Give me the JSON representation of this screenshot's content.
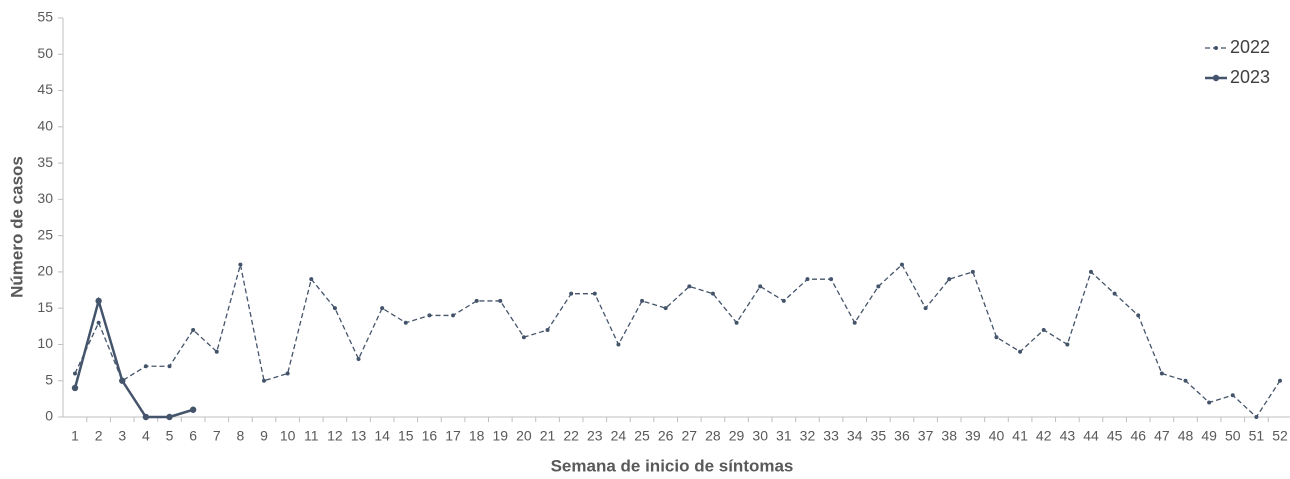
{
  "chart_data": {
    "type": "line",
    "x_label": "Semana de inicio de síntomas",
    "y_label": "Número de casos",
    "categories": [
      1,
      2,
      3,
      4,
      5,
      6,
      7,
      8,
      9,
      10,
      11,
      12,
      13,
      14,
      15,
      16,
      17,
      18,
      19,
      20,
      21,
      22,
      23,
      24,
      25,
      26,
      27,
      28,
      29,
      30,
      31,
      32,
      33,
      34,
      35,
      36,
      37,
      38,
      39,
      40,
      41,
      42,
      43,
      44,
      45,
      46,
      47,
      48,
      49,
      50,
      51,
      52
    ],
    "series": [
      {
        "name": "2022",
        "color": "#44546a",
        "dashed": true,
        "values": [
          6,
          13,
          5,
          7,
          7,
          12,
          9,
          21,
          5,
          6,
          19,
          15,
          8,
          15,
          13,
          14,
          14,
          16,
          16,
          11,
          12,
          17,
          17,
          10,
          16,
          15,
          18,
          17,
          13,
          18,
          16,
          19,
          19,
          13,
          18,
          21,
          15,
          19,
          20,
          11,
          9,
          12,
          10,
          20,
          17,
          14,
          6,
          5,
          2,
          3,
          0,
          5
        ]
      },
      {
        "name": "2023",
        "color": "#44546a",
        "dashed": false,
        "values": [
          4,
          16,
          5,
          0,
          0,
          1,
          null,
          null,
          null,
          null,
          null,
          null,
          null,
          null,
          null,
          null,
          null,
          null,
          null,
          null,
          null,
          null,
          null,
          null,
          null,
          null,
          null,
          null,
          null,
          null,
          null,
          null,
          null,
          null,
          null,
          null,
          null,
          null,
          null,
          null,
          null,
          null,
          null,
          null,
          null,
          null,
          null,
          null,
          null,
          null,
          null,
          null
        ]
      }
    ],
    "ylim": [
      0,
      55
    ],
    "yticks": [
      0,
      5,
      10,
      15,
      20,
      25,
      30,
      35,
      40,
      45,
      50,
      55
    ],
    "grid": false,
    "legend": "top-right"
  }
}
